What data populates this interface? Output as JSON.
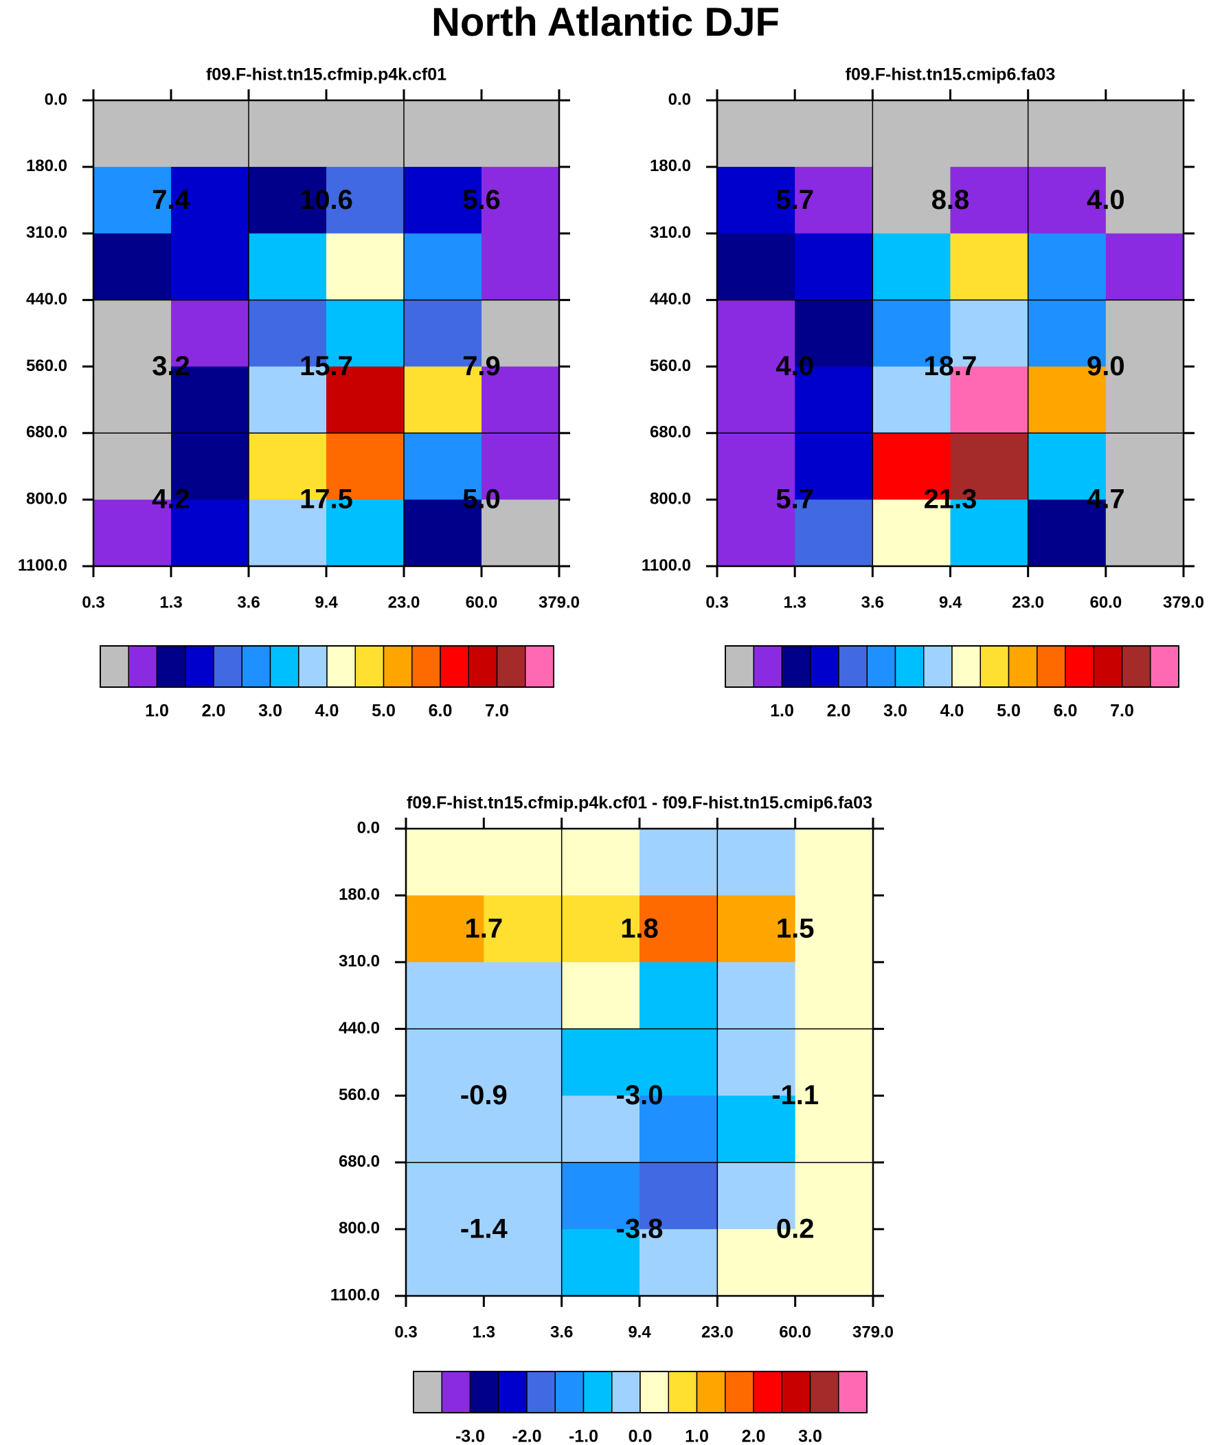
{
  "title": "North Atlantic DJF",
  "colors": {
    "palette": [
      "#bebebe",
      "#8a2be2",
      "#00008b",
      "#0000cd",
      "#4169e1",
      "#1e90ff",
      "#00bfff",
      "#a0d2ff",
      "#ffffc8",
      "#ffe030",
      "#ffa500",
      "#ff6a00",
      "#ff0000",
      "#c80000",
      "#a52a2a",
      "#ff69b4"
    ]
  },
  "chart_data": [
    {
      "type": "heatmap",
      "title": "f09.F-hist.tn15.cfmip.p4k.cf01",
      "x_ticks": [
        "0.3",
        "1.3",
        "3.6",
        "9.4",
        "23.0",
        "60.0",
        "379.0"
      ],
      "y_ticks": [
        "0.0",
        "180.0",
        "310.0",
        "440.0",
        "560.0",
        "680.0",
        "800.0",
        "1100.0"
      ],
      "cells": [
        [
          0,
          0,
          0,
          0,
          0,
          0
        ],
        [
          5,
          3,
          2,
          4,
          3,
          1
        ],
        [
          2,
          3,
          6,
          8,
          5,
          1
        ],
        [
          0,
          1,
          4,
          6,
          4,
          0
        ],
        [
          0,
          2,
          7,
          13,
          9,
          1
        ],
        [
          0,
          2,
          9,
          11,
          5,
          1
        ],
        [
          1,
          3,
          7,
          6,
          2,
          0
        ]
      ],
      "box_labels": [
        [
          "7.4",
          "10.6",
          "5.6"
        ],
        [
          "3.2",
          "15.7",
          "7.9"
        ],
        [
          "4.2",
          "17.5",
          "5.0"
        ]
      ],
      "colorbar_labels": [
        "1.0",
        "2.0",
        "3.0",
        "4.0",
        "5.0",
        "6.0",
        "7.0"
      ]
    },
    {
      "type": "heatmap",
      "title": "f09.F-hist.tn15.cmip6.fa03",
      "x_ticks": [
        "0.3",
        "1.3",
        "3.6",
        "9.4",
        "23.0",
        "60.0",
        "379.0"
      ],
      "y_ticks": [
        "0.0",
        "180.0",
        "310.0",
        "440.0",
        "560.0",
        "680.0",
        "800.0",
        "1100.0"
      ],
      "cells": [
        [
          0,
          0,
          0,
          0,
          0,
          0
        ],
        [
          3,
          1,
          0,
          1,
          1,
          0
        ],
        [
          2,
          3,
          6,
          9,
          5,
          1
        ],
        [
          1,
          2,
          5,
          7,
          5,
          0
        ],
        [
          1,
          3,
          7,
          15,
          10,
          0
        ],
        [
          1,
          3,
          12,
          14,
          6,
          0
        ],
        [
          1,
          4,
          8,
          6,
          2,
          0
        ]
      ],
      "box_labels": [
        [
          "5.7",
          "8.8",
          "4.0"
        ],
        [
          "4.0",
          "18.7",
          "9.0"
        ],
        [
          "5.7",
          "21.3",
          "4.7"
        ]
      ],
      "colorbar_labels": [
        "1.0",
        "2.0",
        "3.0",
        "4.0",
        "5.0",
        "6.0",
        "7.0"
      ]
    },
    {
      "type": "heatmap",
      "title": "f09.F-hist.tn15.cfmip.p4k.cf01 - f09.F-hist.tn15.cmip6.fa03",
      "x_ticks": [
        "0.3",
        "1.3",
        "3.6",
        "9.4",
        "23.0",
        "60.0",
        "379.0"
      ],
      "y_ticks": [
        "0.0",
        "180.0",
        "310.0",
        "440.0",
        "560.0",
        "680.0",
        "800.0",
        "1100.0"
      ],
      "cells": [
        [
          8,
          8,
          8,
          7,
          7,
          8
        ],
        [
          10,
          9,
          9,
          11,
          10,
          8
        ],
        [
          7,
          7,
          8,
          6,
          7,
          8
        ],
        [
          7,
          7,
          6,
          6,
          7,
          8
        ],
        [
          7,
          7,
          7,
          5,
          6,
          8
        ],
        [
          7,
          7,
          5,
          4,
          7,
          8
        ],
        [
          7,
          7,
          6,
          7,
          8,
          8
        ]
      ],
      "box_labels": [
        [
          "1.7",
          "1.8",
          "1.5"
        ],
        [
          "-0.9",
          "-3.0",
          "-1.1"
        ],
        [
          "-1.4",
          "-3.8",
          "0.2"
        ]
      ],
      "colorbar_labels": [
        "-3.0",
        "-2.0",
        "-1.0",
        "0.0",
        "1.0",
        "2.0",
        "3.0"
      ]
    }
  ]
}
